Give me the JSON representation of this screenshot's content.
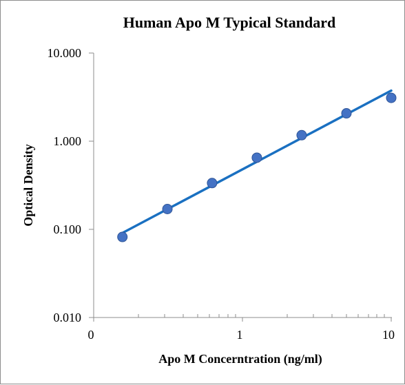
{
  "chart_data": {
    "type": "scatter",
    "title": "Human Apo M Typical Standard",
    "xlabel": "Apo M Concerntration (ng/ml)",
    "ylabel": "Optical Density",
    "x_scale": "log",
    "y_scale": "log",
    "xlim": [
      0.1,
      10
    ],
    "ylim": [
      0.01,
      10
    ],
    "x_ticks": [
      "0",
      "1",
      "10"
    ],
    "y_ticks": [
      "10.000",
      "1.000",
      "0.100",
      "0.010"
    ],
    "grid": false,
    "legend": "none",
    "series": [
      {
        "x": [
          0.156,
          0.313,
          0.625,
          1.25,
          2.5,
          5,
          10
        ],
        "y": [
          0.082,
          0.17,
          0.335,
          0.65,
          1.17,
          2.07,
          3.1
        ],
        "marker_color": "#4472c4"
      }
    ],
    "trendline": {
      "type": "power",
      "x_range": [
        0.156,
        10
      ],
      "y_range": [
        0.091,
        3.75
      ],
      "color": "#1a70c1"
    }
  }
}
